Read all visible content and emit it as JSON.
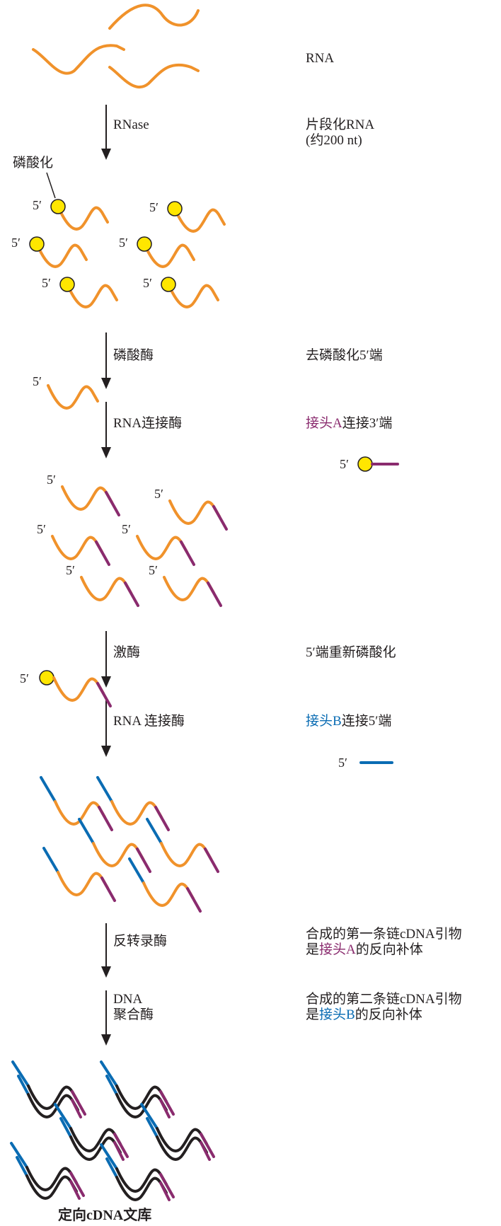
{
  "colors": {
    "rna": "#f0922b",
    "adapter_a": "#8a2b6e",
    "adapter_b": "#0a6cb3",
    "cdna": "#231f20",
    "phosphate": "#ffe600",
    "arrow": "#231f20"
  },
  "right": {
    "rna": "RNA",
    "fragmented_line1": "片段化RNA",
    "fragmented_line2": "(约200 nt)",
    "dephos": "去磷酸化5′端",
    "adapter_a_pre": "接头A",
    "adapter_a_post": "连接3′端",
    "rephos": "5′端重新磷酸化",
    "adapter_b_pre": "接头B",
    "adapter_b_post": "连接5′端",
    "first_strand_line1": "合成的第一条链cDNA引物",
    "first_strand_line2_pre": "是",
    "first_strand_line2_adapter": "接头A",
    "first_strand_line2_post": "的反向补体",
    "second_strand_line1": "合成的第二条链cDNA引物",
    "second_strand_line2_pre": "是",
    "second_strand_line2_adapter": "接头B",
    "second_strand_line2_post": "的反向补体"
  },
  "steps": {
    "rnase": "RNase",
    "phosphatase": "磷酸酶",
    "rna_ligase": "RNA连接酶",
    "kinase": "激酶",
    "rna_ligase2": "RNA 连接酶",
    "rt": "反转录酶",
    "dna_pol_line1": "DNA",
    "dna_pol_line2": "聚合酶"
  },
  "labels": {
    "phosphorylation": "磷酸化",
    "five_prime": "5′"
  },
  "caption": "定向cDNA文库"
}
